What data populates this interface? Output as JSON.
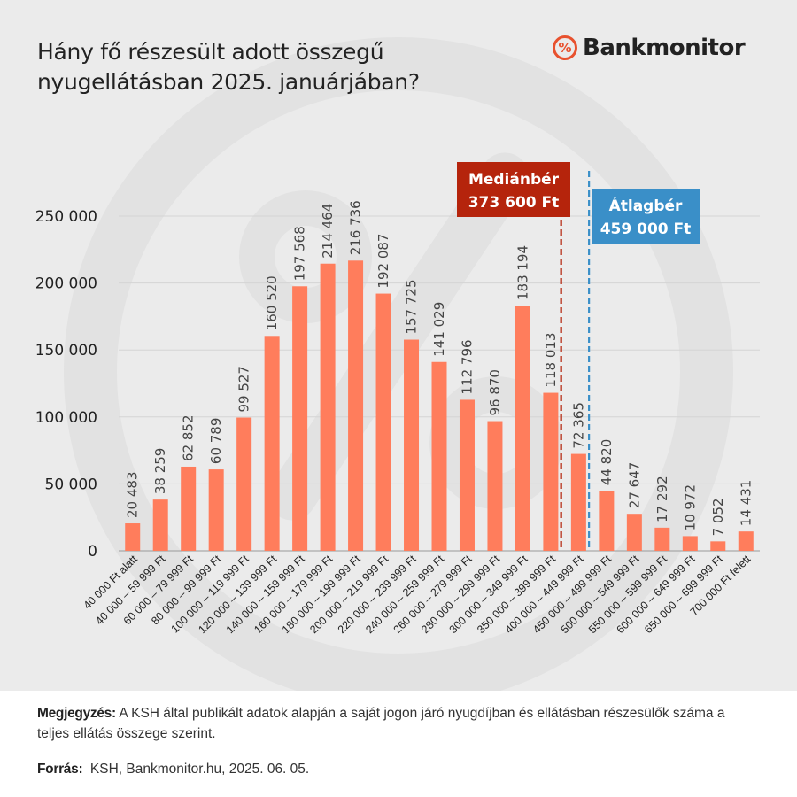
{
  "title": {
    "line1": "Hány fő részesült adott összegű",
    "line2": "nyugellátásban 2025. januárjában?"
  },
  "brand": {
    "icon_text": "%",
    "name": "Bankmonitor",
    "accent": "#e8512e"
  },
  "chart_data": {
    "type": "bar",
    "categories": [
      "40 000 Ft alatt",
      "40 000 – 59 999 Ft",
      "60 000 – 79 999 Ft",
      "80 000 – 99 999 Ft",
      "100 000 – 119 999 Ft",
      "120 000 – 139 999 Ft",
      "140 000 – 159 999 Ft",
      "160 000 – 179 999 Ft",
      "180 000 – 199 999 Ft",
      "200 000 – 219 999 Ft",
      "220 000 – 239 999 Ft",
      "240 000 – 259 999 Ft",
      "260 000 – 279 999 Ft",
      "280 000 – 299 999 Ft",
      "300 000 – 349 999 Ft",
      "350 000 – 399 999 Ft",
      "400 000 – 449 999 Ft",
      "450 000 – 499 999 Ft",
      "500 000 – 549 999 Ft",
      "550 000 – 599 999 Ft",
      "600 000 – 649 999 Ft",
      "650 000 – 699 999 Ft",
      "700 000 Ft felett"
    ],
    "values": [
      20483,
      38259,
      62852,
      60789,
      99527,
      160520,
      197568,
      214464,
      216736,
      192087,
      157725,
      141029,
      112796,
      96870,
      183194,
      118013,
      72365,
      44820,
      27647,
      17292,
      10972,
      7052,
      14431
    ],
    "value_labels": [
      "20 483",
      "38 259",
      "62 852",
      "60 789",
      "99 527",
      "160 520",
      "197 568",
      "214 464",
      "216 736",
      "192 087",
      "157 725",
      "141 029",
      "112 796",
      "96 870",
      "183 194",
      "118 013",
      "72 365",
      "44 820",
      "27 647",
      "17 292",
      "10 972",
      "7 052",
      "14 431"
    ],
    "yticks": [
      0,
      50000,
      100000,
      150000,
      200000,
      250000
    ],
    "ytick_labels": [
      "0",
      "50 000",
      "100 000",
      "150 000",
      "200 000",
      "250 000"
    ],
    "ylim": [
      0,
      250000
    ],
    "grid": true,
    "bar_color": "#ff7d5c",
    "reference_lines": [
      {
        "name": "median",
        "label_line1": "Mediánbér",
        "label_line2": "373 600 Ft",
        "position": "between 350 000 – 399 999 Ft and 400 000 – 449 999 Ft",
        "color": "#b5240c",
        "style": "dashed"
      },
      {
        "name": "average",
        "label_line1": "Átlagbér",
        "label_line2": "459 000 Ft",
        "position": "between 400 000 – 449 999 Ft and 450 000 – 499 999 Ft",
        "color": "#3a8fc8",
        "style": "dashed"
      }
    ]
  },
  "footer": {
    "note_label": "Megjegyzés:",
    "note_text": " A KSH által publikált adatok alapján a saját jogon járó nyugdíjban és ellátásban részesülők száma a teljes ellátás összege szerint.",
    "source_label": "Forrás:",
    "source_text": "  KSH, Bankmonitor.hu, 2025. 06. 05."
  }
}
